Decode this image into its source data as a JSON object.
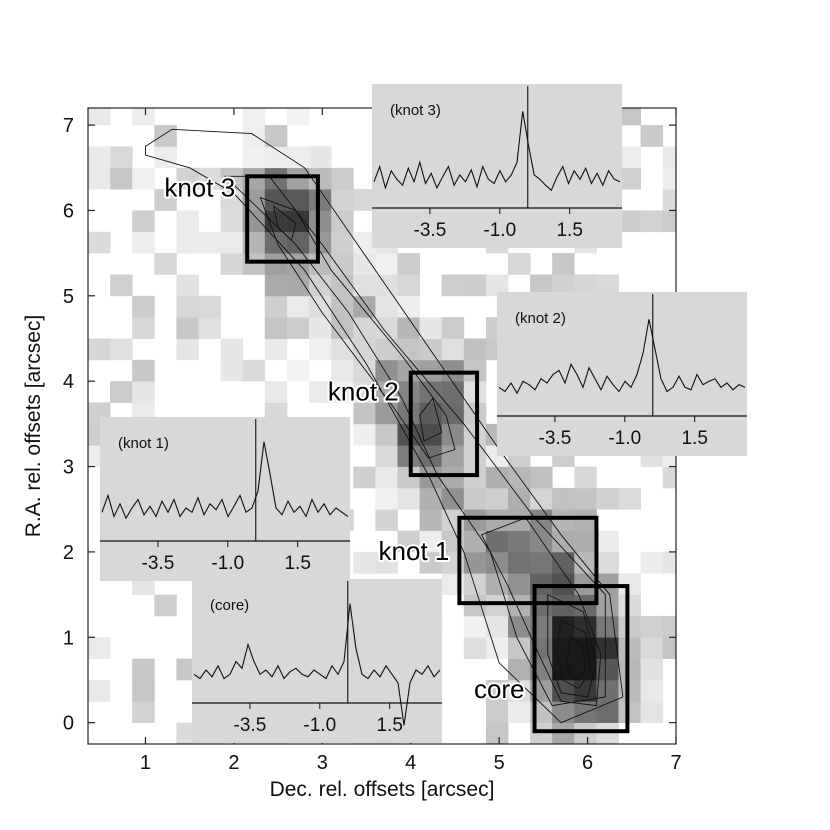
{
  "chart_data": {
    "type": "heatmap",
    "xlabel": "Dec. rel. offsets [arcsec]",
    "ylabel": "R.A. rel. offsets [arcsec]",
    "xlim": [
      0.35,
      7.0
    ],
    "ylim": [
      -0.25,
      7.2
    ],
    "x_ticks": [
      1,
      2,
      3,
      4,
      5,
      6,
      7
    ],
    "y_ticks": [
      0,
      1,
      2,
      3,
      4,
      5,
      6,
      7
    ],
    "pixel_size_arcsec": 0.25,
    "colormap": "grayscale (white = low, black = high)",
    "emission_clumps": [
      {
        "x": 2.6,
        "y": 5.9,
        "sx": 0.3,
        "sy": 0.35,
        "amp": 0.75
      },
      {
        "x": 4.2,
        "y": 3.6,
        "sx": 0.3,
        "sy": 0.5,
        "amp": 0.55
      },
      {
        "x": 5.3,
        "y": 2.0,
        "sx": 0.45,
        "sy": 0.35,
        "amp": 0.45
      },
      {
        "x": 5.9,
        "y": 0.8,
        "sx": 0.35,
        "sy": 0.55,
        "amp": 0.95
      }
    ],
    "regions": [
      {
        "label": "knot 3",
        "x0": 2.15,
        "x1": 2.95,
        "y0": 5.4,
        "y1": 6.4
      },
      {
        "label": "knot 2",
        "x0": 4.0,
        "x1": 4.75,
        "y0": 2.9,
        "y1": 4.1
      },
      {
        "label": "knot 1",
        "x0": 4.55,
        "x1": 6.1,
        "y0": 1.4,
        "y1": 2.4
      },
      {
        "label": "core",
        "x0": 5.4,
        "x1": 6.45,
        "y0": -0.1,
        "y1": 1.6
      }
    ],
    "contours": [
      {
        "level": 1,
        "points": [
          [
            1.0,
            6.75
          ],
          [
            1.3,
            6.95
          ],
          [
            2.2,
            6.9
          ],
          [
            2.8,
            6.5
          ],
          [
            3.4,
            5.6
          ],
          [
            4.2,
            4.4
          ],
          [
            5.0,
            3.2
          ],
          [
            5.7,
            2.2
          ],
          [
            6.25,
            1.5
          ],
          [
            6.4,
            0.3
          ],
          [
            5.7,
            0.0
          ],
          [
            5.0,
            0.7
          ],
          [
            4.6,
            2.0
          ],
          [
            4.2,
            2.9
          ],
          [
            3.5,
            4.2
          ],
          [
            2.8,
            5.3
          ],
          [
            2.0,
            6.2
          ],
          [
            1.5,
            6.5
          ],
          [
            1.0,
            6.65
          ]
        ]
      },
      {
        "level": 2,
        "points": [
          [
            1.9,
            6.4
          ],
          [
            2.4,
            6.4
          ],
          [
            3.0,
            5.6
          ],
          [
            3.7,
            4.6
          ],
          [
            4.6,
            3.5
          ],
          [
            5.4,
            2.4
          ],
          [
            6.2,
            1.5
          ],
          [
            6.2,
            0.3
          ],
          [
            5.6,
            0.2
          ],
          [
            5.2,
            1.0
          ],
          [
            4.9,
            2.0
          ],
          [
            4.3,
            2.9
          ],
          [
            3.9,
            3.8
          ],
          [
            3.3,
            4.8
          ],
          [
            2.7,
            5.6
          ],
          [
            2.2,
            6.1
          ]
        ]
      },
      {
        "level": 3,
        "points": [
          [
            2.3,
            6.15
          ],
          [
            2.7,
            6.0
          ],
          [
            3.1,
            5.3
          ],
          [
            3.9,
            4.3
          ],
          [
            4.4,
            3.6
          ],
          [
            4.5,
            3.2
          ],
          [
            4.2,
            3.1
          ],
          [
            3.8,
            3.7
          ],
          [
            3.0,
            4.8
          ],
          [
            2.5,
            5.6
          ]
        ]
      },
      {
        "level": 4,
        "points": [
          [
            4.8,
            2.2
          ],
          [
            5.3,
            2.4
          ],
          [
            5.9,
            1.5
          ],
          [
            6.15,
            0.8
          ],
          [
            6.1,
            0.2
          ],
          [
            5.7,
            0.25
          ],
          [
            5.45,
            0.8
          ],
          [
            5.1,
            1.6
          ]
        ]
      },
      {
        "level": 5,
        "points": [
          [
            5.55,
            1.5
          ],
          [
            5.95,
            1.3
          ],
          [
            6.1,
            0.7
          ],
          [
            6.0,
            0.3
          ],
          [
            5.7,
            0.35
          ],
          [
            5.55,
            0.8
          ]
        ]
      },
      {
        "level": 6,
        "points": [
          [
            5.7,
            1.2
          ],
          [
            5.98,
            1.05
          ],
          [
            6.03,
            0.6
          ],
          [
            5.9,
            0.4
          ],
          [
            5.72,
            0.5
          ],
          [
            5.65,
            0.85
          ]
        ]
      },
      {
        "level": 7,
        "points": [
          [
            5.8,
            1.0
          ],
          [
            5.95,
            0.9
          ],
          [
            5.97,
            0.6
          ],
          [
            5.85,
            0.5
          ],
          [
            5.77,
            0.7
          ]
        ]
      },
      {
        "level": 8,
        "points": [
          [
            2.45,
            6.05
          ],
          [
            2.7,
            5.85
          ],
          [
            2.65,
            5.65
          ],
          [
            2.5,
            5.8
          ]
        ]
      },
      {
        "level": 9,
        "points": [
          [
            4.25,
            3.8
          ],
          [
            4.35,
            3.4
          ],
          [
            4.15,
            3.3
          ],
          [
            4.1,
            3.6
          ]
        ]
      }
    ],
    "insets": [
      {
        "title": "(knot 3)",
        "ticks": [
          "-3.5",
          "-1.0",
          "1.5"
        ],
        "tick_values": [
          -3.5,
          -1.0,
          1.5
        ],
        "xlim": [
          -5.5,
          3.3
        ],
        "marker_x": 0.0,
        "spectrum": [
          0.12,
          0.3,
          0.05,
          0.25,
          0.15,
          0.08,
          0.28,
          0.12,
          0.35,
          0.1,
          0.22,
          0.05,
          0.18,
          0.3,
          0.08,
          0.2,
          0.12,
          0.26,
          0.06,
          0.3,
          0.15,
          0.1,
          0.25,
          0.12,
          0.2,
          0.35,
          0.95,
          0.55,
          0.2,
          0.15,
          0.08,
          0.02,
          0.18,
          0.3,
          0.1,
          0.25,
          0.15,
          0.28,
          0.1,
          0.22,
          0.08,
          0.25,
          0.15,
          0.12
        ]
      },
      {
        "title": "(knot 2)",
        "ticks": [
          "-3.5",
          "-1.0",
          "1.5"
        ],
        "tick_values": [
          -3.5,
          -1.0,
          1.5
        ],
        "xlim": [
          -5.5,
          3.3
        ],
        "marker_x": 0.0,
        "spectrum": [
          0.15,
          0.1,
          0.2,
          0.08,
          0.22,
          0.18,
          0.12,
          0.25,
          0.2,
          0.3,
          0.35,
          0.2,
          0.42,
          0.3,
          0.15,
          0.38,
          0.25,
          0.12,
          0.28,
          0.18,
          0.1,
          0.22,
          0.15,
          0.3,
          0.55,
          0.95,
          0.6,
          0.25,
          0.1,
          0.15,
          0.28,
          0.15,
          0.12,
          0.3,
          0.18,
          0.22,
          0.25,
          0.15,
          0.2,
          0.12,
          0.18,
          0.15
        ]
      },
      {
        "title": "(knot 1)",
        "ticks": [
          "-3.5",
          "-1.0",
          "1.5"
        ],
        "tick_values": [
          -3.5,
          -1.0,
          1.5
        ],
        "xlim": [
          -5.5,
          3.3
        ],
        "marker_x": 0.0,
        "spectrum": [
          0.15,
          0.35,
          0.1,
          0.25,
          0.08,
          0.2,
          0.3,
          0.12,
          0.22,
          0.1,
          0.28,
          0.15,
          0.3,
          0.1,
          0.2,
          0.15,
          0.32,
          0.12,
          0.25,
          0.18,
          0.3,
          0.1,
          0.22,
          0.35,
          0.15,
          0.2,
          0.4,
          0.98,
          0.6,
          0.2,
          0.12,
          0.28,
          0.15,
          0.22,
          0.1,
          0.3,
          0.15,
          0.25,
          0.12,
          0.2,
          0.15,
          0.1
        ]
      },
      {
        "title": "(core)",
        "ticks": [
          "-3.5",
          "-1.0",
          "1.5"
        ],
        "tick_values": [
          -3.5,
          -1.0,
          1.5
        ],
        "xlim": [
          -5.5,
          3.3
        ],
        "marker_x": 0.0,
        "spectrum": [
          0.15,
          0.1,
          0.2,
          0.12,
          0.25,
          0.1,
          0.15,
          0.3,
          0.22,
          0.5,
          0.3,
          0.15,
          0.2,
          0.12,
          0.25,
          0.1,
          0.18,
          0.22,
          0.15,
          0.12,
          0.2,
          0.15,
          0.1,
          0.25,
          0.15,
          0.3,
          0.98,
          0.45,
          0.15,
          0.1,
          0.2,
          0.12,
          0.25,
          0.15,
          0.05,
          -0.45,
          0.05,
          0.2,
          0.15,
          0.25,
          0.12,
          0.2
        ]
      }
    ]
  }
}
